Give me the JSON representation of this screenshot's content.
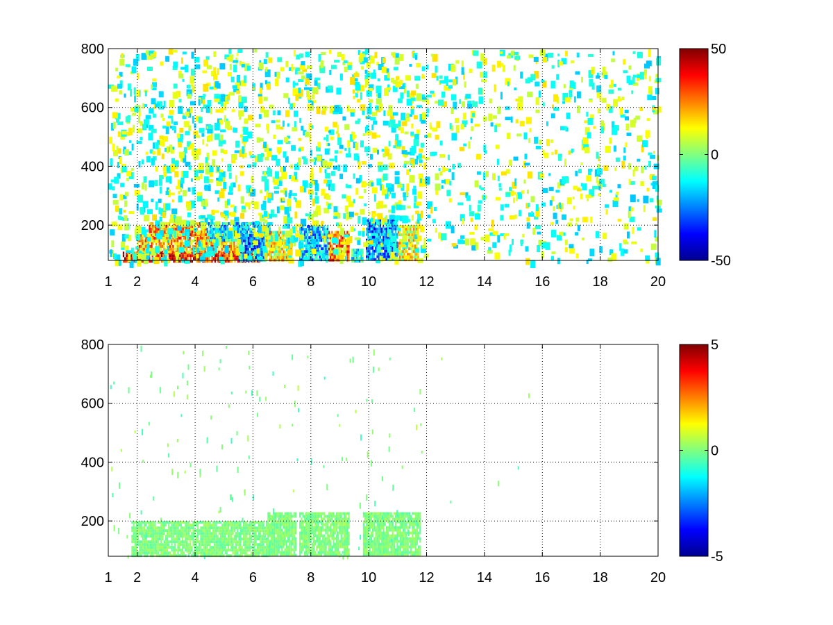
{
  "chart_data": [
    {
      "type": "heatmap",
      "title": "",
      "xlabel": "",
      "ylabel": "",
      "xlim": [
        1,
        20
      ],
      "ylim": [
        80,
        800
      ],
      "xticks": [
        1,
        2,
        4,
        6,
        8,
        10,
        12,
        14,
        16,
        18,
        20
      ],
      "xtick_labels": [
        "1",
        "2",
        "4",
        "6",
        "8",
        "10",
        "12",
        "14",
        "16",
        "18",
        "20"
      ],
      "yticks": [
        200,
        400,
        600,
        800
      ],
      "ytick_labels": [
        "200",
        "400",
        "600",
        "800"
      ],
      "grid": true,
      "colormap": "jet",
      "clim": [
        -50,
        50
      ],
      "colorbar_ticks": [
        50,
        0,
        -50
      ],
      "colorbar_tick_labels": [
        "50",
        "0",
        "-50"
      ],
      "colors": {
        "missing": "#ffffff"
      },
      "description_regions": [
        {
          "x": [
            1.5,
            6.2
          ],
          "y": [
            80,
            110
          ],
          "level": 35
        },
        {
          "x": [
            2.0,
            5.6
          ],
          "y": [
            110,
            170
          ],
          "level": 20
        },
        {
          "x": [
            2.4,
            4.4
          ],
          "y": [
            170,
            210
          ],
          "level": 22
        },
        {
          "x": [
            4.4,
            6.6
          ],
          "y": [
            150,
            210
          ],
          "level": -15
        },
        {
          "x": [
            5.5,
            6.4
          ],
          "y": [
            80,
            170
          ],
          "level": -25
        },
        {
          "x": [
            6.4,
            7.3
          ],
          "y": [
            80,
            180
          ],
          "level": 12
        },
        {
          "x": [
            7.6,
            8.6
          ],
          "y": [
            80,
            200
          ],
          "level": -20
        },
        {
          "x": [
            8.6,
            9.3
          ],
          "y": [
            80,
            180
          ],
          "level": 25
        },
        {
          "x": [
            9.4,
            9.8
          ],
          "y": [
            80,
            120
          ],
          "level": -10
        },
        {
          "x": [
            9.9,
            11.0
          ],
          "y": [
            80,
            220
          ],
          "level": -25
        },
        {
          "x": [
            11.0,
            11.7
          ],
          "y": [
            80,
            200
          ],
          "level": 10
        }
      ]
    },
    {
      "type": "heatmap",
      "title": "",
      "xlabel": "",
      "ylabel": "",
      "xlim": [
        1,
        20
      ],
      "ylim": [
        80,
        800
      ],
      "xticks": [
        1,
        2,
        4,
        6,
        8,
        10,
        12,
        14,
        16,
        18,
        20
      ],
      "xtick_labels": [
        "1",
        "2",
        "4",
        "6",
        "8",
        "10",
        "12",
        "14",
        "16",
        "18",
        "20"
      ],
      "yticks": [
        200,
        400,
        600,
        800
      ],
      "ytick_labels": [
        "200",
        "400",
        "600",
        "800"
      ],
      "grid": true,
      "colormap": "jet",
      "clim": [
        -5,
        5
      ],
      "colorbar_ticks": [
        5,
        0,
        -5
      ],
      "colorbar_tick_labels": [
        "5",
        "0",
        "-5"
      ],
      "colors": {
        "missing": "#ffffff"
      },
      "description_regions": [
        {
          "x": [
            1.8,
            6.5
          ],
          "y": [
            80,
            200
          ],
          "level": 0
        },
        {
          "x": [
            6.5,
            7.5
          ],
          "y": [
            80,
            230
          ],
          "level": 0
        },
        {
          "x": [
            7.6,
            9.3
          ],
          "y": [
            80,
            230
          ],
          "level": 0
        },
        {
          "x": [
            9.8,
            11.8
          ],
          "y": [
            80,
            230
          ],
          "level": 0
        }
      ]
    }
  ]
}
